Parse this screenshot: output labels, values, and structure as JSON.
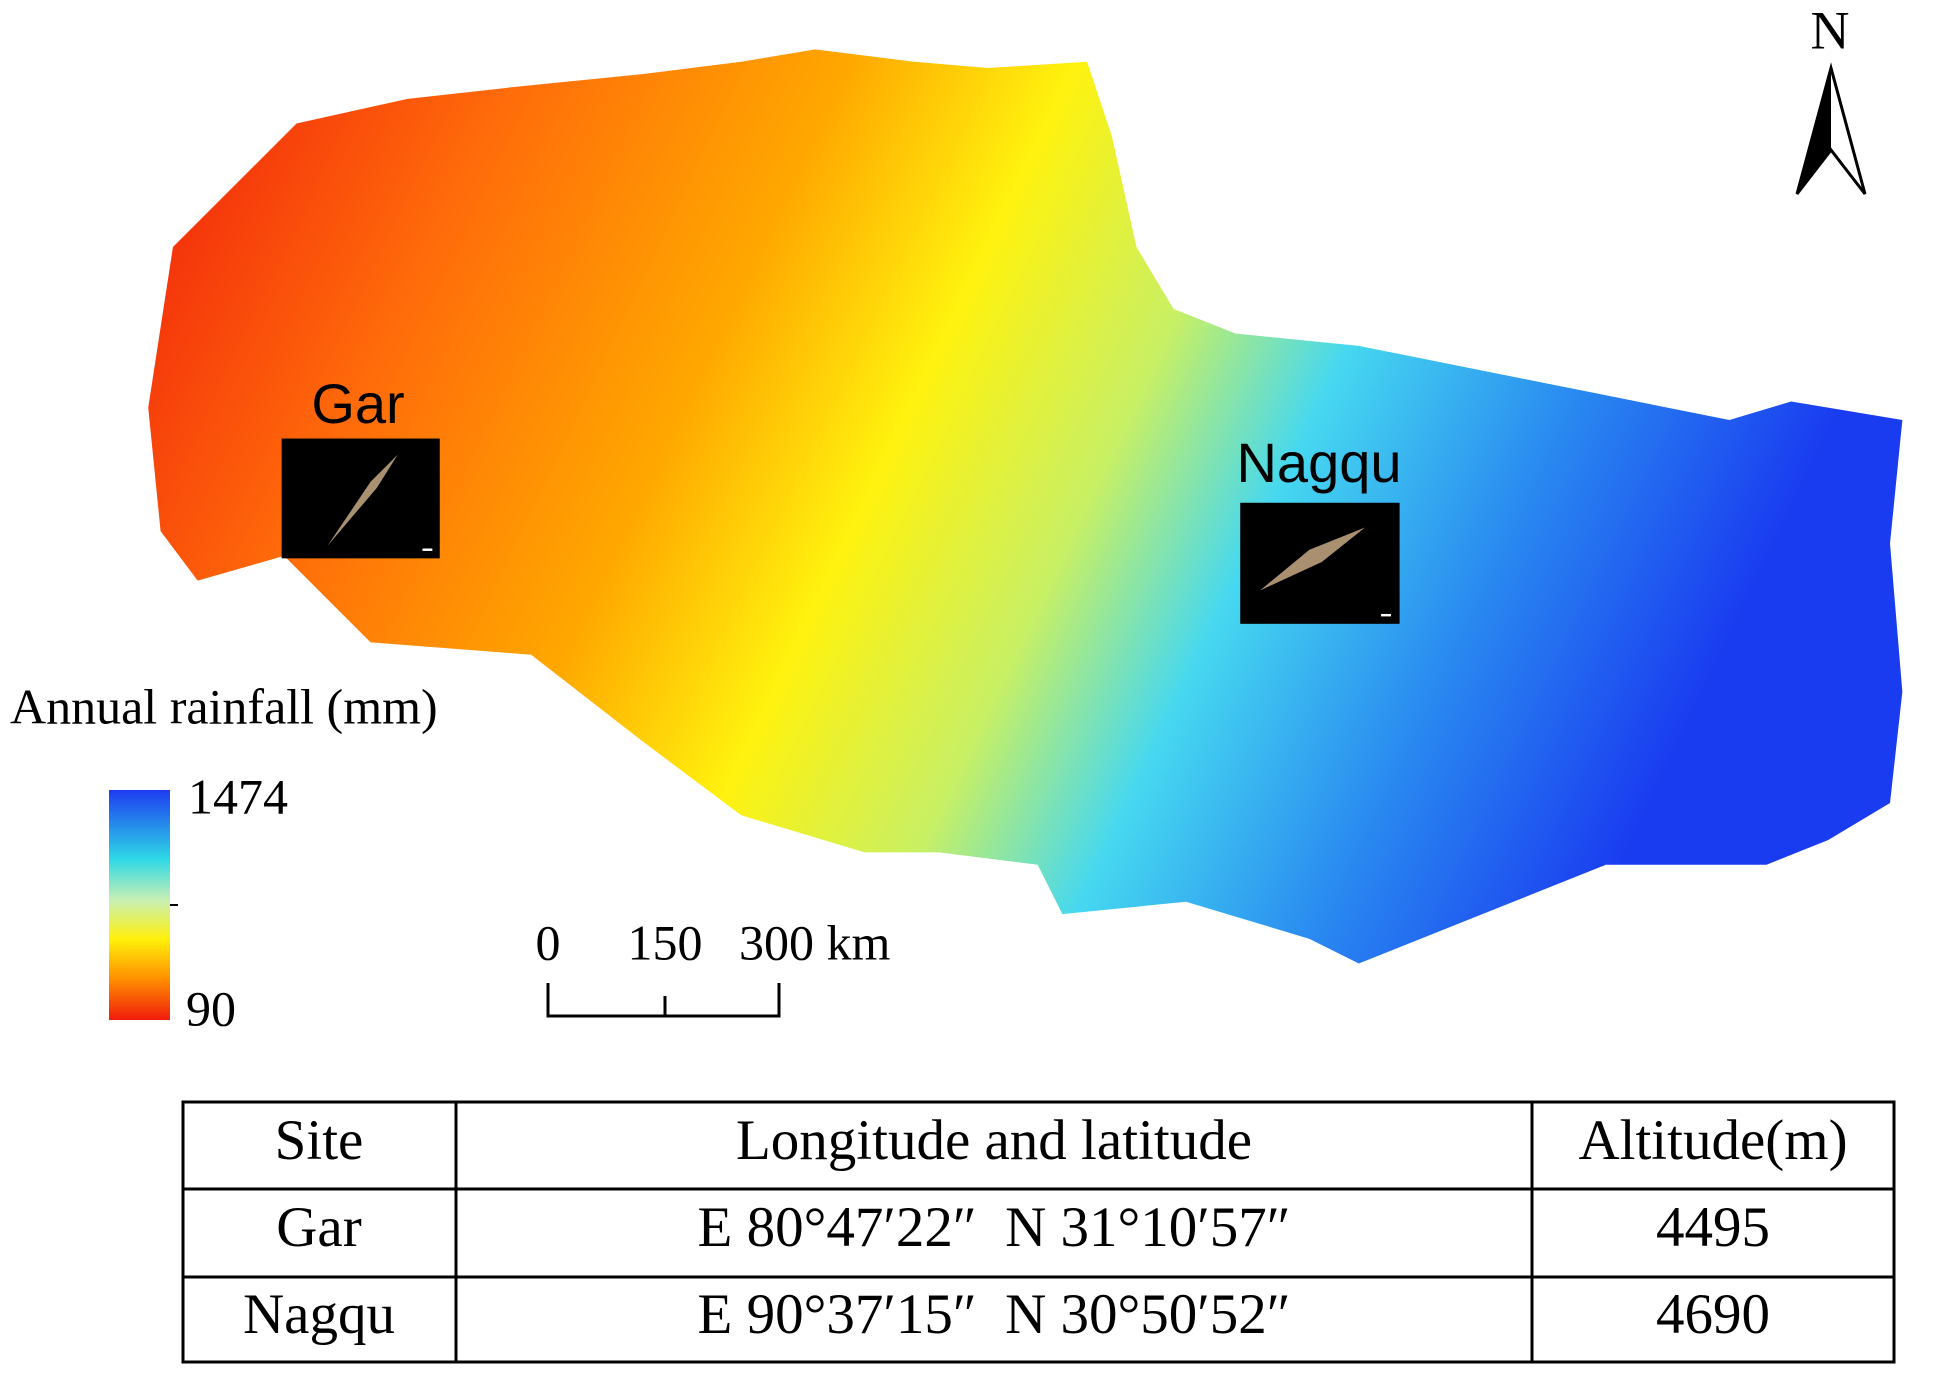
{
  "map": {
    "north": "N",
    "sites": [
      {
        "name": "Gar"
      },
      {
        "name": "Nagqu"
      }
    ],
    "legend": {
      "title": "Annual rainfall (mm)",
      "max": "1474",
      "min": "90"
    },
    "scale_bar": [
      "0",
      "150",
      "300 km"
    ]
  },
  "table": {
    "header": [
      "Site",
      "Longitude and latitude",
      "Altitude(m)"
    ],
    "rows": [
      [
        "Gar",
        "E 80°47′22″  N 31°10′57″",
        "4495"
      ],
      [
        "Nagqu",
        "E 90°37′15″  N 30°50′52″",
        "4690"
      ]
    ]
  }
}
